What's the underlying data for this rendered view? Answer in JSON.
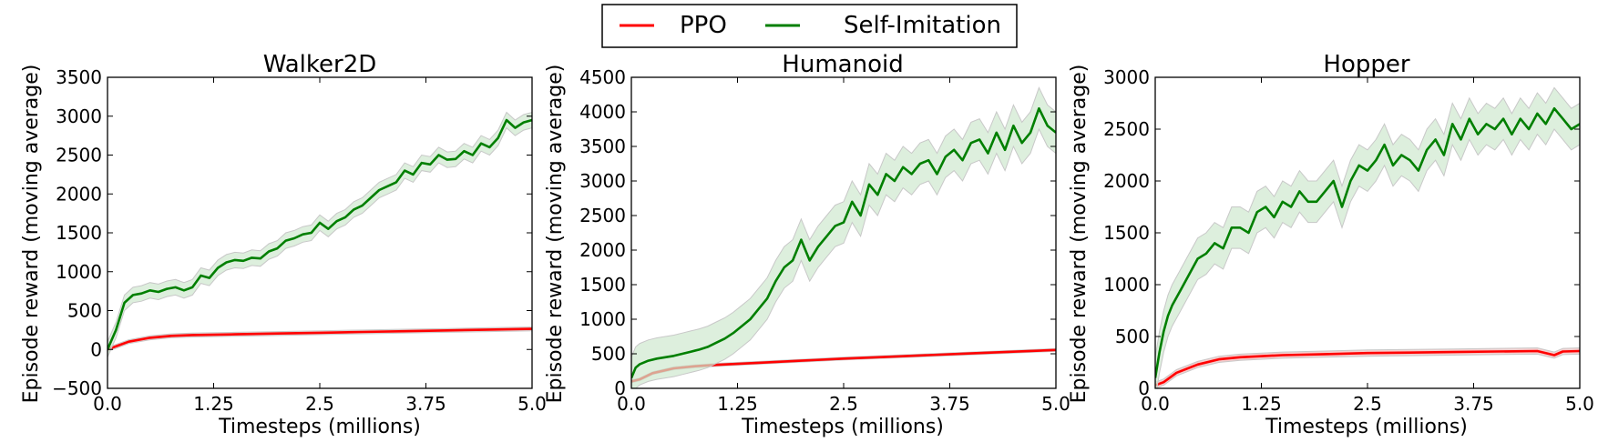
{
  "legend": {
    "placement": "top-center",
    "entries": [
      {
        "label": "PPO",
        "color": "#ff0000"
      },
      {
        "label": "Self-Imitation",
        "color": "#007f00"
      }
    ]
  },
  "colors": {
    "ppo_line": "#ff0000",
    "ppo_band": "#f2b8b8",
    "si_line": "#007f00",
    "si_band": "#cfe8cf",
    "band_edge": "#c8c8c8"
  },
  "chart_data": [
    {
      "type": "line",
      "title": "Walker2D",
      "xlabel": "Timesteps (millions)",
      "ylabel": "Episode reward (moving average)",
      "xlim": [
        0,
        5
      ],
      "ylim": [
        -500,
        3500
      ],
      "xticks": [
        0,
        1.25,
        2.5,
        3.75,
        5
      ],
      "xtick_labels": [
        "0.0",
        "1.25",
        "2.5",
        "3.75",
        "5.0"
      ],
      "yticks": [
        -500,
        0,
        500,
        1000,
        1500,
        2000,
        2500,
        3000,
        3500
      ],
      "ytick_labels": [
        "−500",
        "0",
        "500",
        "1000",
        "1500",
        "2000",
        "2500",
        "3000",
        "3500"
      ],
      "grid": false,
      "series": [
        {
          "name": "PPO",
          "x": [
            0,
            0.1,
            0.25,
            0.5,
            0.75,
            1.0,
            1.5,
            2.0,
            2.5,
            3.0,
            3.5,
            4.0,
            4.5,
            5.0
          ],
          "y": [
            0,
            40,
            100,
            150,
            175,
            185,
            195,
            205,
            215,
            225,
            235,
            245,
            255,
            265
          ],
          "band": 25
        },
        {
          "name": "Self-Imitation",
          "x": [
            0,
            0.1,
            0.2,
            0.3,
            0.4,
            0.5,
            0.6,
            0.7,
            0.8,
            0.9,
            1.0,
            1.1,
            1.2,
            1.3,
            1.4,
            1.5,
            1.6,
            1.7,
            1.8,
            1.9,
            2.0,
            2.1,
            2.2,
            2.3,
            2.4,
            2.5,
            2.6,
            2.7,
            2.8,
            2.9,
            3.0,
            3.1,
            3.2,
            3.3,
            3.4,
            3.5,
            3.6,
            3.7,
            3.8,
            3.9,
            4.0,
            4.1,
            4.2,
            4.3,
            4.4,
            4.5,
            4.6,
            4.7,
            4.8,
            4.9,
            5.0
          ],
          "y": [
            0,
            250,
            600,
            700,
            720,
            760,
            740,
            780,
            800,
            760,
            800,
            950,
            920,
            1050,
            1120,
            1150,
            1140,
            1180,
            1170,
            1260,
            1300,
            1400,
            1430,
            1480,
            1500,
            1630,
            1550,
            1650,
            1700,
            1800,
            1850,
            1950,
            2050,
            2100,
            2150,
            2300,
            2250,
            2400,
            2380,
            2500,
            2440,
            2450,
            2550,
            2500,
            2650,
            2600,
            2720,
            2950,
            2850,
            2920,
            2950
          ],
          "band": 100
        }
      ]
    },
    {
      "type": "line",
      "title": "Humanoid",
      "xlabel": "Timesteps (millions)",
      "ylabel": "Episode reward (moving average)",
      "xlim": [
        0,
        5
      ],
      "ylim": [
        0,
        4500
      ],
      "xticks": [
        0,
        1.25,
        2.5,
        3.75,
        5
      ],
      "xtick_labels": [
        "0.0",
        "1.25",
        "2.5",
        "3.75",
        "5.0"
      ],
      "yticks": [
        0,
        500,
        1000,
        1500,
        2000,
        2500,
        3000,
        3500,
        4000,
        4500
      ],
      "ytick_labels": [
        "0",
        "500",
        "1000",
        "1500",
        "2000",
        "2500",
        "3000",
        "3500",
        "4000",
        "4500"
      ],
      "grid": false,
      "series": [
        {
          "name": "PPO",
          "x": [
            0,
            0.1,
            0.25,
            0.5,
            0.75,
            1.0,
            1.5,
            2.0,
            2.5,
            3.0,
            3.5,
            4.0,
            4.5,
            5.0
          ],
          "y": [
            100,
            130,
            220,
            290,
            320,
            340,
            370,
            400,
            430,
            455,
            480,
            505,
            530,
            555
          ],
          "band": 20
        },
        {
          "name": "Self-Imitation",
          "x": [
            0,
            0.05,
            0.1,
            0.2,
            0.3,
            0.4,
            0.5,
            0.6,
            0.7,
            0.8,
            0.9,
            1.0,
            1.1,
            1.2,
            1.3,
            1.4,
            1.5,
            1.6,
            1.7,
            1.8,
            1.9,
            2.0,
            2.1,
            2.2,
            2.3,
            2.4,
            2.5,
            2.6,
            2.7,
            2.8,
            2.9,
            3.0,
            3.1,
            3.2,
            3.3,
            3.4,
            3.5,
            3.6,
            3.7,
            3.8,
            3.9,
            4.0,
            4.1,
            4.2,
            4.3,
            4.4,
            4.5,
            4.6,
            4.7,
            4.8,
            4.9,
            5.0
          ],
          "y": [
            150,
            300,
            350,
            400,
            430,
            450,
            470,
            500,
            530,
            560,
            600,
            660,
            720,
            800,
            900,
            1000,
            1150,
            1300,
            1550,
            1750,
            1850,
            2150,
            1850,
            2050,
            2200,
            2350,
            2400,
            2700,
            2500,
            2950,
            2800,
            3100,
            3000,
            3200,
            3100,
            3250,
            3300,
            3100,
            3350,
            3450,
            3300,
            3550,
            3600,
            3400,
            3700,
            3450,
            3800,
            3550,
            3700,
            4050,
            3800,
            3700
          ],
          "band": 300
        }
      ]
    },
    {
      "type": "line",
      "title": "Hopper",
      "xlabel": "Timesteps (millions)",
      "ylabel": "Episode reward (moving average)",
      "xlim": [
        0,
        5
      ],
      "ylim": [
        0,
        3000
      ],
      "xticks": [
        0,
        1.25,
        2.5,
        3.75,
        5
      ],
      "xtick_labels": [
        "0.0",
        "1.25",
        "2.5",
        "3.75",
        "5.0"
      ],
      "yticks": [
        0,
        500,
        1000,
        1500,
        2000,
        2500,
        3000
      ],
      "ytick_labels": [
        "0",
        "500",
        "1000",
        "1500",
        "2000",
        "2500",
        "3000"
      ],
      "grid": false,
      "series": [
        {
          "name": "PPO",
          "x": [
            0,
            0.1,
            0.25,
            0.5,
            0.75,
            1.0,
            1.5,
            2.0,
            2.5,
            3.0,
            3.5,
            4.0,
            4.5,
            4.7,
            4.8,
            5.0
          ],
          "y": [
            30,
            60,
            150,
            230,
            280,
            300,
            320,
            330,
            340,
            345,
            350,
            355,
            360,
            320,
            355,
            360
          ],
          "band": 30
        },
        {
          "name": "Self-Imitation",
          "x": [
            0,
            0.05,
            0.1,
            0.15,
            0.2,
            0.3,
            0.4,
            0.5,
            0.6,
            0.7,
            0.8,
            0.9,
            1.0,
            1.1,
            1.2,
            1.3,
            1.4,
            1.5,
            1.6,
            1.7,
            1.8,
            1.9,
            2.0,
            2.1,
            2.2,
            2.3,
            2.4,
            2.5,
            2.6,
            2.7,
            2.8,
            2.9,
            3.0,
            3.1,
            3.2,
            3.3,
            3.4,
            3.5,
            3.6,
            3.7,
            3.8,
            3.9,
            4.0,
            4.1,
            4.2,
            4.3,
            4.4,
            4.5,
            4.6,
            4.7,
            4.8,
            4.9,
            5.0
          ],
          "y": [
            100,
            350,
            550,
            700,
            800,
            950,
            1100,
            1250,
            1300,
            1400,
            1350,
            1550,
            1550,
            1500,
            1700,
            1750,
            1650,
            1800,
            1750,
            1900,
            1800,
            1800,
            1900,
            2000,
            1750,
            2000,
            2150,
            2100,
            2200,
            2350,
            2150,
            2250,
            2200,
            2100,
            2300,
            2400,
            2250,
            2550,
            2400,
            2600,
            2450,
            2550,
            2500,
            2600,
            2450,
            2600,
            2500,
            2650,
            2550,
            2700,
            2600,
            2500,
            2550
          ],
          "band": 200
        }
      ]
    }
  ]
}
